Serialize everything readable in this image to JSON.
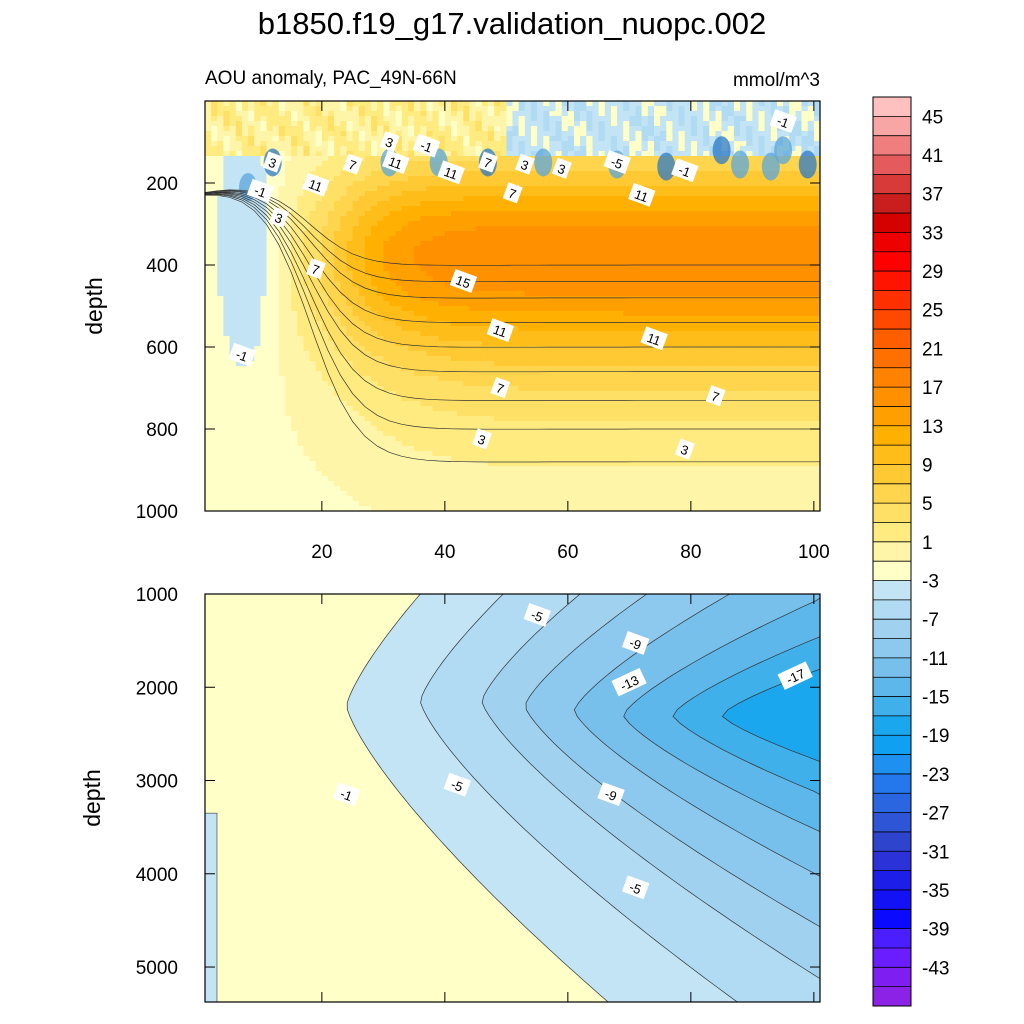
{
  "title": "b1850.f19_g17.validation_nuopc.002",
  "subtitle": "AOU anomaly, PAC_49N-66N",
  "units": "mmol/m^3",
  "colors": {
    "pos": [
      "#ffffc8",
      "#fff5a8",
      "#ffeb80",
      "#ffe066",
      "#ffd54d",
      "#ffc933",
      "#ffbd1a",
      "#ffb000",
      "#ffa000",
      "#ff9100",
      "#ff8200",
      "#ff7000",
      "#ff5e00",
      "#ff4800",
      "#ff3000",
      "#ff1400",
      "#ff0000",
      "#ee0000",
      "#d50000",
      "#c81e1e",
      "#d83a3a",
      "#e55a5a",
      "#f07e7e",
      "#f8a5a5",
      "#ffc0c0"
    ],
    "neg": [
      "#c2e4f5",
      "#b1dbf3",
      "#a0d2f0",
      "#8dc9ee",
      "#77c0ec",
      "#5eb7ea",
      "#40b0ea",
      "#1ba7ee",
      "#10a0f2",
      "#1e90f0",
      "#2478ec",
      "#2a66e0",
      "#2d55d6",
      "#2e44cc",
      "#2b33d8",
      "#1d1ee8",
      "#1212f5",
      "#0a0aff",
      "#4a1eff",
      "#6a1eff",
      "#7e1ef0",
      "#8c22e6"
    ]
  },
  "colorbar_labels": [
    "45",
    "41",
    "37",
    "33",
    "29",
    "25",
    "21",
    "17",
    "13",
    "9",
    "5",
    "1",
    "-3",
    "-7",
    "-11",
    "-15",
    "-19",
    "-23",
    "-27",
    "-31",
    "-35",
    "-39",
    "-43"
  ],
  "chart_data": [
    {
      "type": "heatmap",
      "panel": "upper",
      "subtitle": "AOU anomaly, PAC_49N-66N",
      "xlabel": "",
      "ylabel": "depth",
      "xlim": [
        1,
        101
      ],
      "ylim": [
        1000,
        0
      ],
      "xticks": [
        20,
        40,
        60,
        80,
        100
      ],
      "yticks": [
        200,
        400,
        600,
        800,
        1000
      ],
      "contour_interval": 2,
      "contour_labels": [
        {
          "text": "-1",
          "x": 95,
          "y": 50
        },
        {
          "text": "3",
          "x": 31,
          "y": 100
        },
        {
          "text": "-1",
          "x": 37,
          "y": 110
        },
        {
          "text": "3",
          "x": 12,
          "y": 150
        },
        {
          "text": "7",
          "x": 25,
          "y": 155
        },
        {
          "text": "11",
          "x": 32,
          "y": 150
        },
        {
          "text": "7",
          "x": 47,
          "y": 150
        },
        {
          "text": "3",
          "x": 53,
          "y": 155
        },
        {
          "text": "3",
          "x": 59,
          "y": 165
        },
        {
          "text": "-5",
          "x": 68,
          "y": 150
        },
        {
          "text": "-1",
          "x": 79,
          "y": 170
        },
        {
          "text": "11",
          "x": 41,
          "y": 175
        },
        {
          "text": "11",
          "x": 19,
          "y": 205
        },
        {
          "text": "-1",
          "x": 10,
          "y": 220
        },
        {
          "text": "7",
          "x": 51,
          "y": 225
        },
        {
          "text": "11",
          "x": 72,
          "y": 230
        },
        {
          "text": "3",
          "x": 13,
          "y": 285
        },
        {
          "text": "7",
          "x": 19,
          "y": 410
        },
        {
          "text": "15",
          "x": 43,
          "y": 440
        },
        {
          "text": "11",
          "x": 49,
          "y": 560
        },
        {
          "text": "11",
          "x": 74,
          "y": 580
        },
        {
          "text": "-1",
          "x": 7,
          "y": 620
        },
        {
          "text": "7",
          "x": 49,
          "y": 700
        },
        {
          "text": "7",
          "x": 84,
          "y": 720
        },
        {
          "text": "3",
          "x": 46,
          "y": 825
        },
        {
          "text": "3",
          "x": 79,
          "y": 850
        }
      ]
    },
    {
      "type": "heatmap",
      "panel": "lower",
      "xlabel": "",
      "ylabel": "depth",
      "xlim": [
        1,
        101
      ],
      "ylim": [
        5375,
        1000
      ],
      "yticks": [
        1000,
        2000,
        3000,
        4000,
        5000
      ],
      "contour_interval": 2,
      "contour_labels": [
        {
          "text": "-5",
          "x": 55,
          "y": 1230
        },
        {
          "text": "-9",
          "x": 71,
          "y": 1530
        },
        {
          "text": "-13",
          "x": 70,
          "y": 1950
        },
        {
          "text": "-17",
          "x": 97,
          "y": 1880
        },
        {
          "text": "-1",
          "x": 24,
          "y": 3150
        },
        {
          "text": "-5",
          "x": 42,
          "y": 3050
        },
        {
          "text": "-9",
          "x": 67,
          "y": 3150
        },
        {
          "text": "-5",
          "x": 71,
          "y": 4150
        }
      ]
    }
  ]
}
